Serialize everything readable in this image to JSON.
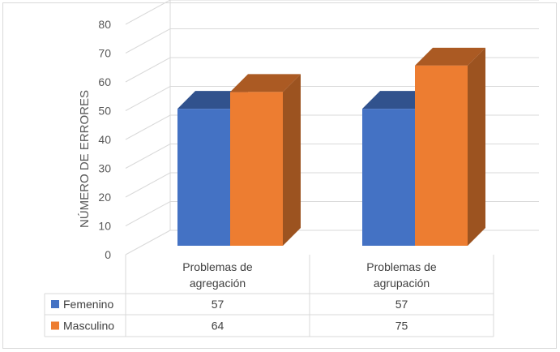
{
  "chart_data": {
    "type": "bar",
    "title": "",
    "xlabel": "",
    "ylabel": "NÚMERO DE ERRORES",
    "categories": [
      [
        "Problemas de",
        "agregación"
      ],
      [
        "Problemas de",
        "agrupación"
      ]
    ],
    "series": [
      {
        "name": "Femenino",
        "values": [
          57,
          57
        ],
        "color": "#4472c4"
      },
      {
        "name": "Masculino",
        "values": [
          64,
          75
        ],
        "color": "#ed7d31"
      }
    ],
    "ylim": [
      0,
      80
    ],
    "yticks": [
      0,
      10,
      20,
      30,
      40,
      50,
      60,
      70,
      80
    ],
    "grid": true,
    "legend": "data-table",
    "data_table": true
  }
}
